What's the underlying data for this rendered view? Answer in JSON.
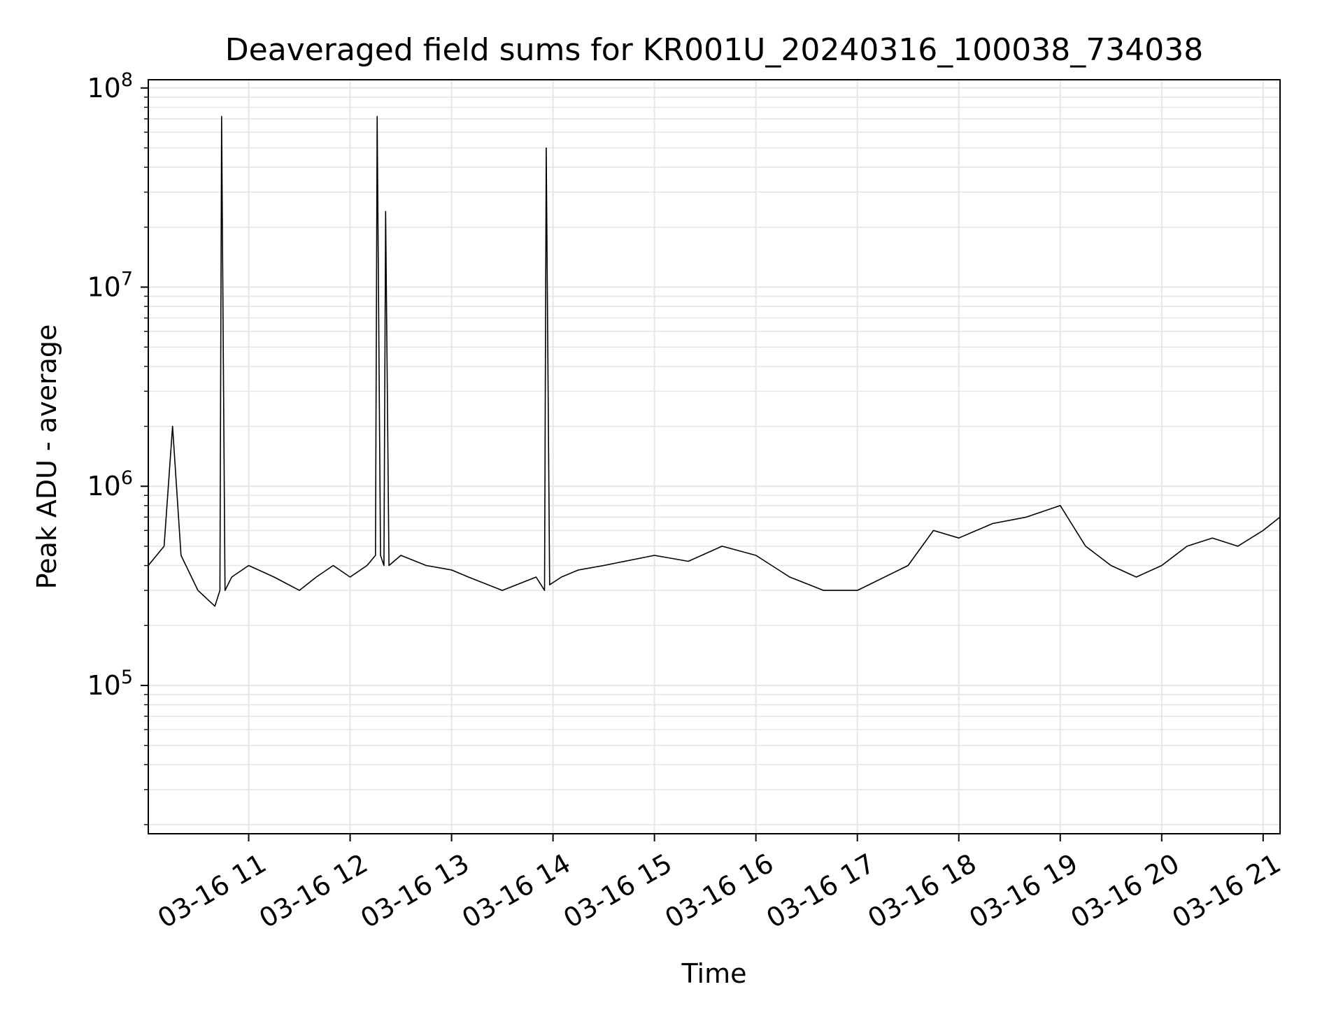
{
  "chart_data": {
    "type": "line",
    "title": "Deaveraged field sums for KR001U_20240316_100038_734038",
    "xlabel": "Time",
    "ylabel": "Peak ADU - average",
    "yscale": "log",
    "ylim": [
      18000,
      110000000
    ],
    "xlim": [
      "2024-03-16T10:00:38",
      "2024-03-16T21:10:00"
    ],
    "grid": true,
    "grid_color": "#e6e6e6",
    "line_color": "#000000",
    "x_ticks": [
      {
        "t": "2024-03-16T11:00:00",
        "label": "03-16 11"
      },
      {
        "t": "2024-03-16T12:00:00",
        "label": "03-16 12"
      },
      {
        "t": "2024-03-16T13:00:00",
        "label": "03-16 13"
      },
      {
        "t": "2024-03-16T14:00:00",
        "label": "03-16 14"
      },
      {
        "t": "2024-03-16T15:00:00",
        "label": "03-16 15"
      },
      {
        "t": "2024-03-16T16:00:00",
        "label": "03-16 16"
      },
      {
        "t": "2024-03-16T17:00:00",
        "label": "03-16 17"
      },
      {
        "t": "2024-03-16T18:00:00",
        "label": "03-16 18"
      },
      {
        "t": "2024-03-16T19:00:00",
        "label": "03-16 19"
      },
      {
        "t": "2024-03-16T20:00:00",
        "label": "03-16 20"
      },
      {
        "t": "2024-03-16T21:00:00",
        "label": "03-16 21"
      }
    ],
    "y_ticks": [
      {
        "value": 100000,
        "base": "10",
        "exp": "5"
      },
      {
        "value": 1000000,
        "base": "10",
        "exp": "6"
      },
      {
        "value": 10000000,
        "base": "10",
        "exp": "7"
      },
      {
        "value": 100000000,
        "base": "10",
        "exp": "8"
      }
    ],
    "series": [
      {
        "x": [
          "2024-03-16T10:00:38",
          "2024-03-16T10:10:00",
          "2024-03-16T10:15:00",
          "2024-03-16T10:20:00",
          "2024-03-16T10:30:00",
          "2024-03-16T10:40:00",
          "2024-03-16T10:43:00",
          "2024-03-16T10:44:00",
          "2024-03-16T10:46:00",
          "2024-03-16T10:50:00",
          "2024-03-16T11:00:00",
          "2024-03-16T11:15:00",
          "2024-03-16T11:30:00",
          "2024-03-16T11:40:00",
          "2024-03-16T11:50:00",
          "2024-03-16T12:00:00",
          "2024-03-16T12:10:00",
          "2024-03-16T12:15:00",
          "2024-03-16T12:16:00",
          "2024-03-16T12:18:00",
          "2024-03-16T12:20:00",
          "2024-03-16T12:21:00",
          "2024-03-16T12:23:00",
          "2024-03-16T12:30:00",
          "2024-03-16T12:45:00",
          "2024-03-16T13:00:00",
          "2024-03-16T13:10:00",
          "2024-03-16T13:30:00",
          "2024-03-16T13:50:00",
          "2024-03-16T13:55:00",
          "2024-03-16T13:56:00",
          "2024-03-16T13:58:00",
          "2024-03-16T14:05:00",
          "2024-03-16T14:15:00",
          "2024-03-16T14:30:00",
          "2024-03-16T15:00:00",
          "2024-03-16T15:20:00",
          "2024-03-16T15:40:00",
          "2024-03-16T16:00:00",
          "2024-03-16T16:20:00",
          "2024-03-16T16:40:00",
          "2024-03-16T17:00:00",
          "2024-03-16T17:30:00",
          "2024-03-16T17:45:00",
          "2024-03-16T18:00:00",
          "2024-03-16T18:20:00",
          "2024-03-16T18:40:00",
          "2024-03-16T19:00:00",
          "2024-03-16T19:15:00",
          "2024-03-16T19:30:00",
          "2024-03-16T19:45:00",
          "2024-03-16T20:00:00",
          "2024-03-16T20:15:00",
          "2024-03-16T20:30:00",
          "2024-03-16T20:45:00",
          "2024-03-16T21:00:00",
          "2024-03-16T21:10:00"
        ],
        "y": [
          400000,
          500000,
          2000000,
          450000,
          300000,
          250000,
          300000,
          72000000,
          300000,
          350000,
          400000,
          350000,
          300000,
          350000,
          400000,
          350000,
          400000,
          450000,
          72000000,
          450000,
          400000,
          24000000,
          400000,
          450000,
          400000,
          380000,
          350000,
          300000,
          350000,
          300000,
          50000000,
          320000,
          350000,
          380000,
          400000,
          450000,
          420000,
          500000,
          450000,
          350000,
          300000,
          300000,
          400000,
          600000,
          550000,
          650000,
          700000,
          800000,
          500000,
          400000,
          350000,
          400000,
          500000,
          550000,
          500000,
          600000,
          700000
        ]
      }
    ]
  }
}
